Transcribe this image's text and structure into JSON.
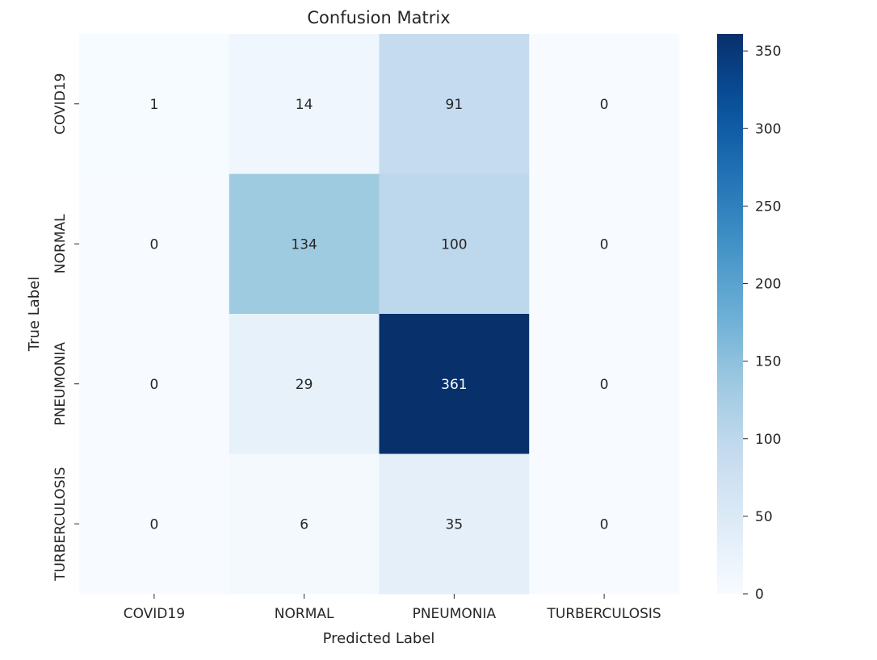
{
  "chart_data": {
    "type": "heatmap",
    "title": "Confusion Matrix",
    "xlabel": "Predicted Label",
    "ylabel": "True Label",
    "x_categories": [
      "COVID19",
      "NORMAL",
      "PNEUMONIA",
      "TURBERCULOSIS"
    ],
    "y_categories": [
      "COVID19",
      "NORMAL",
      "PNEUMONIA",
      "TURBERCULOSIS"
    ],
    "values": [
      [
        1,
        14,
        91,
        0
      ],
      [
        0,
        134,
        100,
        0
      ],
      [
        0,
        29,
        361,
        0
      ],
      [
        0,
        6,
        35,
        0
      ]
    ],
    "colorbar": {
      "min": 0,
      "max": 361,
      "ticks": [
        0,
        50,
        100,
        150,
        200,
        250,
        300,
        350
      ],
      "colormap": "Blues"
    }
  }
}
